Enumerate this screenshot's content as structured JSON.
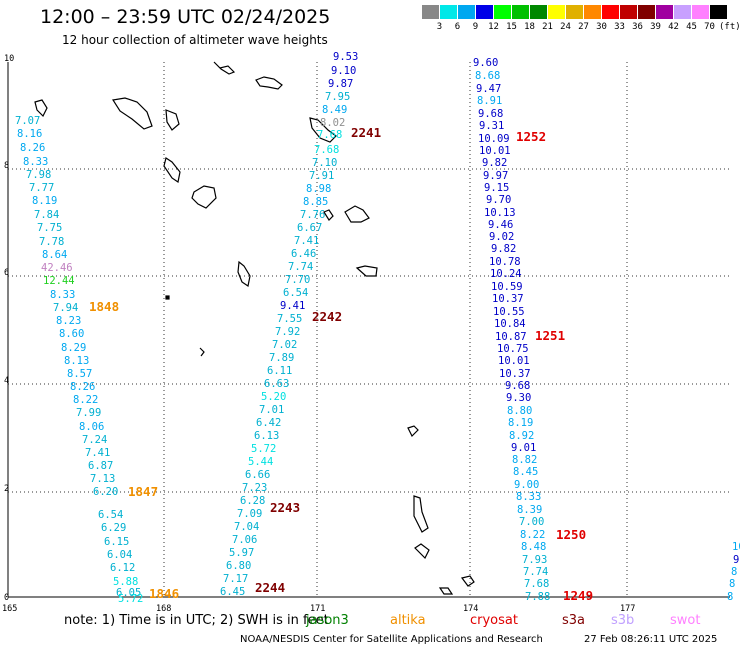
{
  "header": {
    "title": "12:00 – 23:59 UTC 02/24/2025",
    "subtitle": "12 hour collection of altimeter wave heights"
  },
  "legend": {
    "colors": [
      "#888888",
      "#00e8e8",
      "#00a8f0",
      "#0000e8",
      "#00ff00",
      "#00c000",
      "#008800",
      "#ffff00",
      "#e0b000",
      "#ff8800",
      "#ff0000",
      "#c00000",
      "#800000",
      "#a000a0",
      "#c8a0ff",
      "#ff80ff",
      "#000000"
    ],
    "labels": [
      "3",
      "6",
      "9",
      "12",
      "15",
      "18",
      "21",
      "24",
      "27",
      "30",
      "33",
      "36",
      "39",
      "42",
      "45",
      "70",
      "(ft)"
    ]
  },
  "axes": {
    "x_ticks": [
      "165",
      "168",
      "171",
      "174",
      "177"
    ],
    "y_ticks": [
      "10",
      "8",
      "6",
      "4",
      "2",
      "0"
    ]
  },
  "swh_colors": {
    "c6": "#00b0d0",
    "c9": "#00a8f0",
    "c12": "#0000c8",
    "c15": "#20d020",
    "gray": "#909090",
    "lav": "#c080c0"
  },
  "observations": {
    "track1": [
      "7.07",
      "8.16",
      "8.26",
      "8.33",
      "7.98",
      "7.77",
      "8.19",
      "7.84",
      "7.75",
      "7.78",
      "8.64",
      "42.46",
      "12.44",
      "8.33",
      "7.94",
      "8.23",
      "8.60",
      "8.29",
      "8.13",
      "8.57",
      "8.26",
      "8.22",
      "7.99",
      "8.06",
      "7.24",
      "7.41",
      "6.87",
      "7.13",
      "6.20",
      "6.54",
      "6.29",
      "6.15",
      "6.04",
      "6.12",
      "5.88",
      "6.05",
      "5.72"
    ],
    "track2_upper": [
      "9.53",
      "9.10",
      "9.87",
      "7.95",
      "8.49",
      "8.02",
      "7.68",
      "7.68",
      "7.10",
      "7.91",
      "8.98",
      "8.85",
      "7.76",
      "6.67",
      "7.41",
      "6.46",
      "7.74",
      "7.70",
      "6.54",
      "9.41",
      "7.55",
      "7.92",
      "7.02",
      "7.89",
      "6.11",
      "6.63",
      "5.20",
      "7.01",
      "6.42",
      "6.13",
      "5.72",
      "5.44",
      "6.66",
      "7.23",
      "6.28",
      "7.09",
      "7.04",
      "7.06",
      "5.97",
      "6.80",
      "7.17",
      "6.45"
    ],
    "track3": [
      "9.60",
      "8.68",
      "9.47",
      "8.91",
      "9.68",
      "9.31",
      "10.09",
      "10.01",
      "9.82",
      "9.97",
      "9.15",
      "9.70",
      "10.13",
      "9.46",
      "9.02",
      "9.82",
      "10.78",
      "10.24",
      "10.59",
      "10.37",
      "10.55",
      "10.84",
      "10.87",
      "10.75",
      "10.01",
      "10.37",
      "9.68",
      "9.30",
      "8.80",
      "8.19",
      "8.92",
      "9.01",
      "8.82",
      "8.45",
      "9.00",
      "8.33",
      "8.39",
      "7.00",
      "8.22",
      "8.48",
      "7.93",
      "7.74",
      "7.68",
      "7.88"
    ],
    "edge_right": [
      "10",
      "9",
      "8",
      "8",
      "8"
    ]
  },
  "passes": {
    "p1848": "1848",
    "p1847": "1847",
    "p1846": "1846",
    "p2241": "2241",
    "p2242": "2242",
    "p2243": "2243",
    "p2244": "2244",
    "p1252": "1252",
    "p1251": "1251",
    "p1250": "1250",
    "p1249": "1249",
    "orange": "#f09000",
    "maroon": "#800000",
    "red": "#e00000"
  },
  "note": {
    "text": "note:  1) Time is in UTC; 2) SWH is in feet"
  },
  "satellites": [
    {
      "name": "jason3",
      "color": "#008000"
    },
    {
      "name": "altika",
      "color": "#f09000"
    },
    {
      "name": "cryosat",
      "color": "#e00000"
    },
    {
      "name": "s3a",
      "color": "#800000"
    },
    {
      "name": "s3b",
      "color": "#c0a0ff"
    },
    {
      "name": "swot",
      "color": "#ff80ff"
    }
  ],
  "footer": {
    "left": "NOAA/NESDIS Center for Satellite Applications and Research",
    "right": "27 Feb 08:26:11 UTC 2025"
  }
}
